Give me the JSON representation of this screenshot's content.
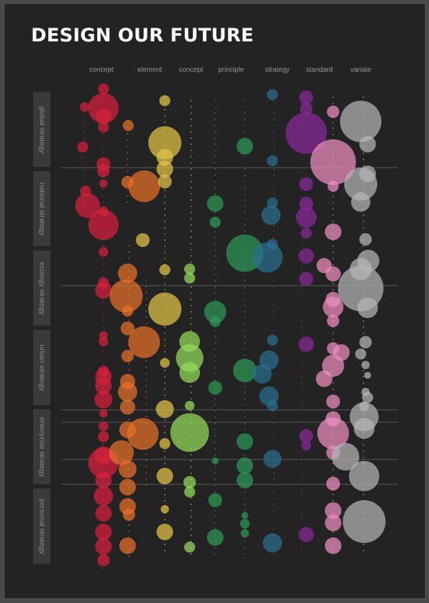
{
  "title": "DESIGN OUR FUTURE",
  "columns": [
    {
      "label": "concept",
      "color": "#d9203d"
    },
    {
      "label": "element",
      "color": "#e8702a"
    },
    {
      "label": "concept",
      "color": "#e3c548"
    },
    {
      "label": "principle",
      "color": "#96dd5a"
    },
    {
      "label": "strategy",
      "color": "#2e9a58"
    },
    {
      "label": "standard",
      "color": "#2a6f90"
    },
    {
      "label": "variate",
      "color": "#8a2a9a"
    }
  ],
  "extra_colors": {
    "pink": "#ee8fc0",
    "grey": "#b5b5b5"
  },
  "rows": [
    "global strategy",
    "national strategy",
    "ecology strategy",
    "urban strategy",
    "enterprise strategy",
    "personal strategy"
  ],
  "chart_data": {
    "type": "scatter",
    "title": "DESIGN OUR FUTURE",
    "x_categories": [
      "concept",
      "element",
      "concept",
      "principle",
      "strategy",
      "standard",
      "variate"
    ],
    "y_categories": [
      "global strategy",
      "national strategy",
      "ecology strategy",
      "urban strategy",
      "enterprise strategy",
      "personal strategy"
    ],
    "series": [
      {
        "color": "#d9203d",
        "points": [
          [
            1,
            1,
            5
          ],
          [
            1,
            1,
            12
          ],
          [
            1,
            1,
            7
          ],
          [
            1,
            1,
            8
          ],
          [
            1,
            1,
            9
          ],
          [
            1,
            1,
            6
          ],
          [
            2,
            1,
            12
          ],
          [
            2,
            1,
            6
          ],
          [
            2,
            1,
            14
          ],
          [
            2,
            1,
            5
          ],
          [
            3,
            1,
            8
          ],
          [
            3,
            1,
            6
          ],
          [
            3,
            1,
            5
          ],
          [
            4,
            1,
            9
          ],
          [
            4,
            1,
            6
          ],
          [
            4,
            1,
            8
          ],
          [
            4,
            1,
            7
          ],
          [
            5,
            1,
            14
          ],
          [
            5,
            1,
            9
          ],
          [
            5,
            1,
            7
          ],
          [
            5,
            1,
            6
          ],
          [
            5,
            1,
            8
          ],
          [
            6,
            1,
            10
          ],
          [
            6,
            1,
            9
          ],
          [
            6,
            1,
            8
          ],
          [
            6,
            1,
            7
          ]
        ]
      },
      {
        "color": "#e8702a",
        "points": [
          [
            1,
            2,
            6
          ],
          [
            1,
            2,
            6
          ],
          [
            2,
            2,
            9
          ],
          [
            2,
            2,
            14
          ],
          [
            3,
            2,
            10
          ],
          [
            3,
            2,
            11
          ],
          [
            3,
            2,
            7
          ],
          [
            3,
            2,
            7
          ],
          [
            4,
            2,
            14
          ],
          [
            4,
            2,
            7
          ],
          [
            4,
            2,
            8
          ],
          [
            4,
            2,
            7
          ],
          [
            4,
            2,
            9
          ],
          [
            5,
            2,
            14
          ],
          [
            5,
            2,
            11
          ],
          [
            5,
            2,
            8
          ],
          [
            5,
            2,
            9
          ],
          [
            6,
            2,
            9
          ],
          [
            6,
            2,
            8
          ]
        ]
      },
      {
        "color": "#e3c548",
        "points": [
          [
            1,
            3,
            6
          ],
          [
            1,
            3,
            15
          ],
          [
            1,
            3,
            8
          ],
          [
            1,
            3,
            7
          ],
          [
            1,
            3,
            6
          ],
          [
            2,
            3,
            5
          ],
          [
            3,
            3,
            8
          ],
          [
            3,
            3,
            15
          ],
          [
            4,
            3,
            5
          ],
          [
            4,
            3,
            9
          ],
          [
            5,
            3,
            8
          ],
          [
            5,
            3,
            6
          ],
          [
            5,
            3,
            9
          ],
          [
            6,
            3,
            6
          ],
          [
            6,
            3,
            9
          ]
        ]
      },
      {
        "color": "#96dd5a",
        "points": [
          [
            3,
            4,
            6
          ],
          [
            3,
            4,
            7
          ],
          [
            4,
            4,
            11
          ],
          [
            4,
            4,
            13
          ],
          [
            4,
            4,
            11
          ],
          [
            5,
            4,
            6
          ],
          [
            5,
            4,
            18
          ],
          [
            5,
            4,
            7
          ],
          [
            6,
            4,
            6
          ]
        ]
      },
      {
        "color": "#2e9a58",
        "points": [
          [
            1,
            5,
            8
          ],
          [
            2,
            5,
            8
          ],
          [
            2,
            5,
            6
          ],
          [
            3,
            5,
            18
          ],
          [
            3,
            5,
            11
          ],
          [
            4,
            5,
            10
          ],
          [
            4,
            5,
            6
          ],
          [
            5,
            5,
            8
          ],
          [
            5,
            5,
            6
          ],
          [
            5,
            5,
            8
          ],
          [
            6,
            5,
            5
          ],
          [
            6,
            5,
            5
          ],
          [
            6,
            5,
            7
          ]
        ]
      },
      {
        "color": "#2a6f90",
        "points": [
          [
            1,
            6,
            6
          ],
          [
            1,
            6,
            5
          ],
          [
            2,
            6,
            6
          ],
          [
            2,
            6,
            9
          ],
          [
            3,
            6,
            6
          ],
          [
            3,
            6,
            15
          ],
          [
            4,
            6,
            6
          ],
          [
            4,
            6,
            9
          ],
          [
            4,
            6,
            9
          ],
          [
            4,
            6,
            8
          ],
          [
            5,
            6,
            8
          ],
          [
            6,
            6,
            9
          ]
        ]
      },
      {
        "color": "#8a2a9a",
        "points": [
          [
            1,
            7,
            7
          ],
          [
            1,
            7,
            6
          ],
          [
            1,
            7,
            20
          ],
          [
            2,
            7,
            7
          ],
          [
            2,
            7,
            7
          ],
          [
            2,
            7,
            10
          ],
          [
            3,
            7,
            8
          ],
          [
            3,
            7,
            7
          ],
          [
            4,
            7,
            7
          ],
          [
            5,
            7,
            6
          ],
          [
            5,
            7,
            7
          ],
          [
            6,
            7,
            7
          ]
        ]
      }
    ]
  }
}
